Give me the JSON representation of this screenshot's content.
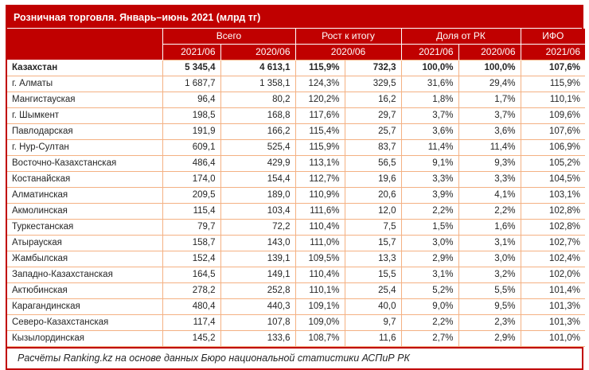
{
  "colors": {
    "header_red": "#C00000",
    "grid_orange": "#F4B183",
    "text_dark": "#262626",
    "header_text": "#FFFFFF"
  },
  "chart_data": {
    "type": "table",
    "title": "Розничная торговля. Январь–июнь 2021 (млрд тг)",
    "column_groups": [
      {
        "label": "Всего",
        "colspan": 2
      },
      {
        "label": "Рост к итогу",
        "colspan": 2
      },
      {
        "label": "Доля от РК",
        "colspan": 2
      },
      {
        "label": "ИФО",
        "colspan": 1
      }
    ],
    "subheaders": [
      "2021/06",
      "2020/06",
      "2020/06",
      "2021/06",
      "2020/06",
      "2021/06"
    ],
    "rows": [
      {
        "region": "Казахстан",
        "bold": true,
        "values": [
          "5 345,4",
          "4 613,1",
          "115,9%",
          "732,3",
          "100,0%",
          "100,0%",
          "107,6%"
        ]
      },
      {
        "region": "г. Алматы",
        "bold": false,
        "values": [
          "1 687,7",
          "1 358,1",
          "124,3%",
          "329,5",
          "31,6%",
          "29,4%",
          "115,9%"
        ]
      },
      {
        "region": "Мангистауская",
        "bold": false,
        "values": [
          "96,4",
          "80,2",
          "120,2%",
          "16,2",
          "1,8%",
          "1,7%",
          "110,1%"
        ]
      },
      {
        "region": "г. Шымкент",
        "bold": false,
        "values": [
          "198,5",
          "168,8",
          "117,6%",
          "29,7",
          "3,7%",
          "3,7%",
          "109,6%"
        ]
      },
      {
        "region": "Павлодарская",
        "bold": false,
        "values": [
          "191,9",
          "166,2",
          "115,4%",
          "25,7",
          "3,6%",
          "3,6%",
          "107,6%"
        ]
      },
      {
        "region": "г. Нур-Султан",
        "bold": false,
        "values": [
          "609,1",
          "525,4",
          "115,9%",
          "83,7",
          "11,4%",
          "11,4%",
          "106,9%"
        ]
      },
      {
        "region": "Восточно-Казахстанская",
        "bold": false,
        "values": [
          "486,4",
          "429,9",
          "113,1%",
          "56,5",
          "9,1%",
          "9,3%",
          "105,2%"
        ]
      },
      {
        "region": "Костанайская",
        "bold": false,
        "values": [
          "174,0",
          "154,4",
          "112,7%",
          "19,6",
          "3,3%",
          "3,3%",
          "104,5%"
        ]
      },
      {
        "region": "Алматинская",
        "bold": false,
        "values": [
          "209,5",
          "189,0",
          "110,9%",
          "20,6",
          "3,9%",
          "4,1%",
          "103,1%"
        ]
      },
      {
        "region": "Акмолинская",
        "bold": false,
        "values": [
          "115,4",
          "103,4",
          "111,6%",
          "12,0",
          "2,2%",
          "2,2%",
          "102,8%"
        ]
      },
      {
        "region": "Туркестанская",
        "bold": false,
        "values": [
          "79,7",
          "72,2",
          "110,4%",
          "7,5",
          "1,5%",
          "1,6%",
          "102,8%"
        ]
      },
      {
        "region": "Атырауская",
        "bold": false,
        "values": [
          "158,7",
          "143,0",
          "111,0%",
          "15,7",
          "3,0%",
          "3,1%",
          "102,7%"
        ]
      },
      {
        "region": "Жамбылская",
        "bold": false,
        "values": [
          "152,4",
          "139,1",
          "109,5%",
          "13,3",
          "2,9%",
          "3,0%",
          "102,4%"
        ]
      },
      {
        "region": "Западно-Казахстанская",
        "bold": false,
        "values": [
          "164,5",
          "149,1",
          "110,4%",
          "15,5",
          "3,1%",
          "3,2%",
          "102,0%"
        ]
      },
      {
        "region": "Актюбинская",
        "bold": false,
        "values": [
          "278,2",
          "252,8",
          "110,1%",
          "25,4",
          "5,2%",
          "5,5%",
          "101,4%"
        ]
      },
      {
        "region": "Карагандинская",
        "bold": false,
        "values": [
          "480,4",
          "440,3",
          "109,1%",
          "40,0",
          "9,0%",
          "9,5%",
          "101,3%"
        ]
      },
      {
        "region": "Северо-Казахстанская",
        "bold": false,
        "values": [
          "117,4",
          "107,8",
          "109,0%",
          "9,7",
          "2,2%",
          "2,3%",
          "101,3%"
        ]
      },
      {
        "region": "Кызылординская",
        "bold": false,
        "values": [
          "145,2",
          "133,6",
          "108,7%",
          "11,6",
          "2,7%",
          "2,9%",
          "101,0%"
        ]
      }
    ],
    "footer": "Расчёты Ranking.kz на основе данных Бюро национальной статистики АСПиР РК"
  }
}
